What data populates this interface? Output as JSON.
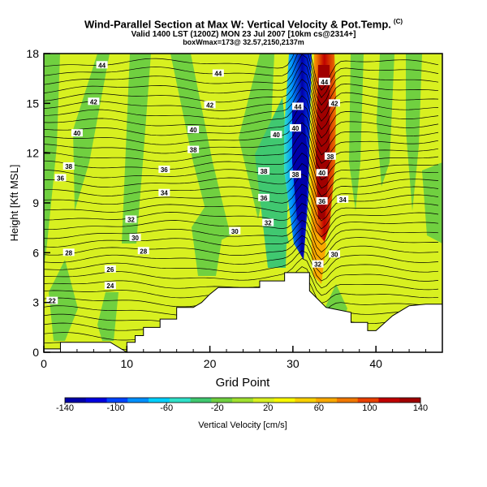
{
  "header": {
    "title": "Wind-Parallel Section at Max W: Vertical Velocity & Pot.Temp.",
    "title_mark": "(C)",
    "valid_line": "Valid 1400 LST (1200Z) MON 23 Jul 2007 [10km cs@2314+]",
    "box_line": "boxWmax=173@ 32.57,2150,2137m"
  },
  "chart_data": {
    "type": "heatmap",
    "title": "Wind-Parallel Section at Max W: Vertical Velocity & Pot.Temp.",
    "xlabel": "Grid Point",
    "ylabel": "Height [Kft MSL]",
    "xlim": [
      0,
      48
    ],
    "ylim": [
      0,
      18
    ],
    "xticks": [
      0,
      10,
      20,
      30,
      40
    ],
    "yticks": [
      0,
      3,
      6,
      9,
      12,
      15,
      18
    ],
    "colorbar": {
      "label": "Vertical Velocity [cm/s]",
      "ticks": [
        -140,
        -100,
        -60,
        -20,
        20,
        60,
        100,
        140
      ],
      "colors": [
        "#0000aa",
        "#0000e0",
        "#0044ff",
        "#0090ff",
        "#00d0ff",
        "#30e0c8",
        "#40c870",
        "#70d040",
        "#a0e030",
        "#d8f020",
        "#f8f800",
        "#f8d000",
        "#f8a800",
        "#f07800",
        "#e84000",
        "#c00000",
        "#a00000"
      ]
    },
    "terrain": [
      [
        0,
        0.2
      ],
      [
        2,
        0.2
      ],
      [
        2,
        0.6
      ],
      [
        8,
        0.6
      ],
      [
        10,
        0
      ],
      [
        10,
        0.6
      ],
      [
        11,
        0.6
      ],
      [
        11,
        1.0
      ],
      [
        12,
        1.0
      ],
      [
        12,
        1.5
      ],
      [
        14,
        1.5
      ],
      [
        14,
        2.0
      ],
      [
        16,
        2.0
      ],
      [
        16,
        2.7
      ],
      [
        18,
        2.7
      ],
      [
        19,
        3.0
      ],
      [
        20,
        3.5
      ],
      [
        21,
        3.9
      ],
      [
        26,
        3.9
      ],
      [
        26,
        4.3
      ],
      [
        29,
        4.3
      ],
      [
        29,
        4.8
      ],
      [
        32,
        4.8
      ],
      [
        32,
        3.7
      ],
      [
        34,
        2.7
      ],
      [
        37,
        2.4
      ],
      [
        37,
        1.8
      ],
      [
        39,
        1.8
      ],
      [
        39,
        1.3
      ],
      [
        40,
        1.3
      ],
      [
        42,
        2.2
      ],
      [
        44,
        2.8
      ],
      [
        46,
        2.9
      ],
      [
        48,
        2.9
      ]
    ],
    "vertical_velocity_features": [
      {
        "name": "updraft core",
        "x": 33.5,
        "y": 12,
        "value": 140
      },
      {
        "name": "downdraft core",
        "x": 31.2,
        "y": 9,
        "value": -140
      }
    ],
    "potential_temperature_labels": [
      {
        "x": 7,
        "y": 17.3,
        "value": "44"
      },
      {
        "x": 21,
        "y": 16.8,
        "value": "44"
      },
      {
        "x": 33.8,
        "y": 16.3,
        "value": "44"
      },
      {
        "x": 30.6,
        "y": 14.8,
        "value": "44"
      },
      {
        "x": 6,
        "y": 15.1,
        "value": "42"
      },
      {
        "x": 20,
        "y": 14.9,
        "value": "42"
      },
      {
        "x": 35,
        "y": 15.0,
        "value": "42"
      },
      {
        "x": 4,
        "y": 13.2,
        "value": "40"
      },
      {
        "x": 18,
        "y": 13.4,
        "value": "40"
      },
      {
        "x": 28,
        "y": 13.1,
        "value": "40"
      },
      {
        "x": 30.3,
        "y": 13.5,
        "value": "40"
      },
      {
        "x": 33.5,
        "y": 10.8,
        "value": "40"
      },
      {
        "x": 3,
        "y": 11.2,
        "value": "38"
      },
      {
        "x": 18,
        "y": 12.2,
        "value": "38"
      },
      {
        "x": 26.5,
        "y": 10.9,
        "value": "38"
      },
      {
        "x": 30.3,
        "y": 10.7,
        "value": "38"
      },
      {
        "x": 34.5,
        "y": 11.8,
        "value": "38"
      },
      {
        "x": 2,
        "y": 10.5,
        "value": "36"
      },
      {
        "x": 14.5,
        "y": 11.0,
        "value": "36"
      },
      {
        "x": 26.5,
        "y": 9.3,
        "value": "36"
      },
      {
        "x": 33.5,
        "y": 9.1,
        "value": "36"
      },
      {
        "x": 14.5,
        "y": 9.6,
        "value": "34"
      },
      {
        "x": 36,
        "y": 9.2,
        "value": "34"
      },
      {
        "x": 10.5,
        "y": 8.0,
        "value": "32"
      },
      {
        "x": 27,
        "y": 7.8,
        "value": "32"
      },
      {
        "x": 33,
        "y": 5.3,
        "value": "32"
      },
      {
        "x": 11,
        "y": 6.9,
        "value": "30"
      },
      {
        "x": 23,
        "y": 7.3,
        "value": "30"
      },
      {
        "x": 35,
        "y": 5.9,
        "value": "30"
      },
      {
        "x": 3,
        "y": 6.0,
        "value": "28"
      },
      {
        "x": 12,
        "y": 6.1,
        "value": "28"
      },
      {
        "x": 8,
        "y": 5.0,
        "value": "26"
      },
      {
        "x": 8,
        "y": 4.0,
        "value": "24"
      },
      {
        "x": 1,
        "y": 3.1,
        "value": "22"
      }
    ]
  }
}
